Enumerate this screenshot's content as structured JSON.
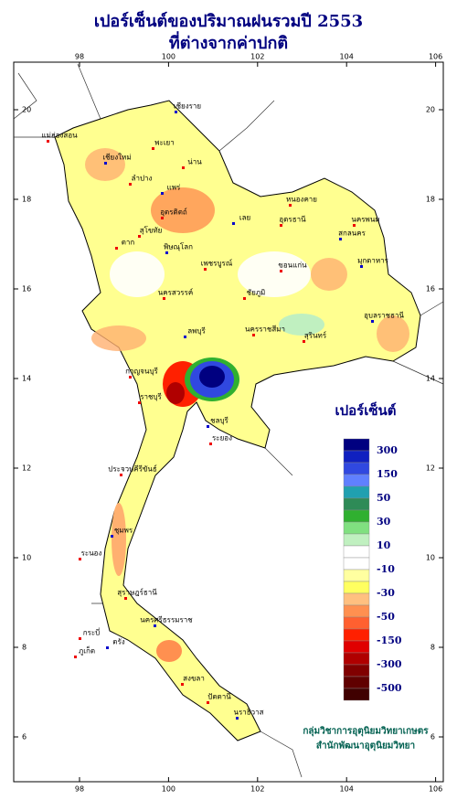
{
  "title": [
    "เปอร์เซ็นต์ของปริมาณฝนรวมปี 2553",
    "ที่ต่างจากค่าปกติ"
  ],
  "xticks": [
    98,
    100,
    102,
    104,
    106
  ],
  "yticks": [
    20,
    18,
    16,
    14,
    12,
    10,
    8,
    6
  ],
  "legend": {
    "title": "เปอร์เซ็นต์",
    "colors": [
      "#000080",
      "#1020c0",
      "#3048e0",
      "#6080ff",
      "#20a0b0",
      "#2e8b57",
      "#30b030",
      "#80e080",
      "#c0f0c0",
      "#ffffff",
      "#ffffff",
      "#ffffa0",
      "#ffff60",
      "#ffc080",
      "#ff9050",
      "#ff6030",
      "#ff2000",
      "#e00000",
      "#b00000",
      "#800000",
      "#600000",
      "#400000"
    ],
    "labels": [
      300,
      150,
      50,
      30,
      10,
      -10,
      -30,
      -50,
      -150,
      -300,
      -500
    ]
  },
  "provinces": [
    "เชียงราย",
    "แม่ฮ่องสอน",
    "พะเยา",
    "เชียงใหม่",
    "น่าน",
    "ลำปาง",
    "แพร่",
    "อุตรดิตถ์",
    "หนองคาย",
    "เลย",
    "อุดรธานี",
    "นครพนม",
    "สกลนคร",
    "ตาก",
    "สุโขทัย",
    "พิษณุโลก",
    "เพชรบูรณ์",
    "ขอนแก่น",
    "มุกดาหาร",
    "นครสวรรค์",
    "ชัยภูมิ",
    "อุบลราชธานี",
    "นครราชสีมา",
    "สุรินทร์",
    "ลพบุรี",
    "กาญจนบุรี",
    "ราชบุรี",
    "ชลบุรี",
    "ระยอง",
    "ประจวบคีรีขันธ์",
    "ชุมพร",
    "ระนอง",
    "สุราษฎร์ธานี",
    "นครศรีธรรมราช",
    "กระบี่",
    "ภูเก็ต",
    "ตรัง",
    "สงขลา",
    "ปัตตานี",
    "นราธิวาส"
  ],
  "credit": [
    "กลุ่มวิชาการอุตุนิยมวิทยาเกษตร",
    "สำนักพัฒนาอุตุนิยมวิทยา"
  ]
}
